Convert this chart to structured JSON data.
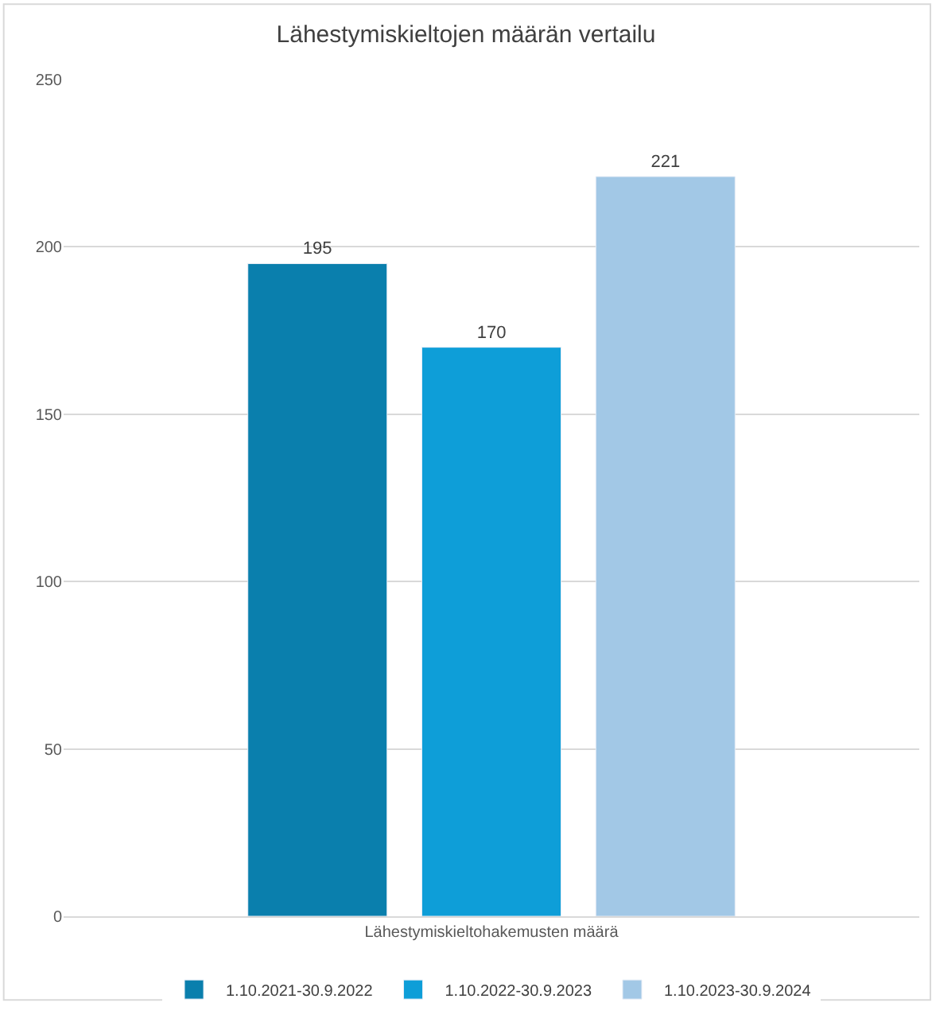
{
  "chart_data": {
    "type": "bar",
    "title": "Lähestymiskieltojen määrän vertailu",
    "categories": [
      "Lähestymiskieltohakemusten määrä"
    ],
    "series": [
      {
        "name": "1.10.2021-30.9.2022",
        "color": "#0a7fad",
        "values": [
          195
        ]
      },
      {
        "name": "1.10.2022-30.9.2023",
        "color": "#0e9ed8",
        "values": [
          170
        ]
      },
      {
        "name": "1.10.2023-30.9.2024",
        "color": "#a2c8e6",
        "values": [
          221
        ]
      }
    ],
    "ylim": [
      0,
      250
    ],
    "yticks": [
      0,
      50,
      100,
      150,
      200,
      250
    ],
    "grid": "y",
    "legend": "bottom",
    "data_labels": true
  }
}
